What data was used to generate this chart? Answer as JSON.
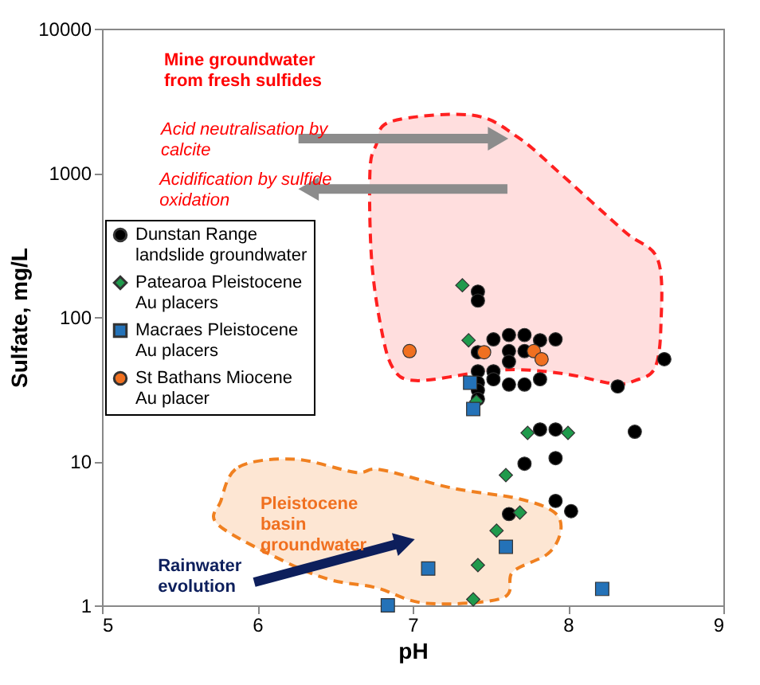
{
  "chart_data": {
    "type": "scatter",
    "xlabel": "pH",
    "ylabel": "Sulfate, mg/L",
    "xlim": [
      5,
      9
    ],
    "xticks": [
      5,
      6,
      7,
      8,
      9
    ],
    "ylim": [
      1,
      10000
    ],
    "yticks": [
      1,
      10,
      100,
      1000,
      10000
    ],
    "log": "y",
    "grid": false,
    "legend": "left",
    "series": [
      {
        "name": "Dunstan Range landslide groundwater",
        "color": "#000000",
        "marker": "circle",
        "x": [
          7.42,
          7.42,
          7.52,
          7.62,
          7.72,
          7.82,
          7.92,
          7.42,
          7.62,
          7.72,
          7.62,
          7.42,
          7.52,
          7.52,
          7.42,
          7.42,
          7.42,
          7.62,
          7.72,
          7.82,
          8.32,
          8.62,
          7.82,
          7.92,
          8.43,
          7.72,
          7.92,
          7.92,
          8.02,
          7.62
        ],
        "values": [
          150,
          130,
          70,
          75,
          75,
          69,
          70,
          57,
          58,
          58,
          49,
          42,
          42,
          37,
          35,
          31,
          27,
          34,
          34,
          37,
          33,
          51,
          16.6,
          16.6,
          16,
          9.6,
          10.5,
          5.3,
          4.5,
          4.3
        ]
      },
      {
        "name": "Patearoa Pleistocene Au placers",
        "color": "#1f9a4c",
        "marker": "diamond",
        "x": [
          7.32,
          7.36,
          7.41,
          7.74,
          8.0,
          7.6,
          7.69,
          7.54,
          7.42,
          7.39
        ],
        "values": [
          166,
          69,
          26,
          15.7,
          15.7,
          8.0,
          4.4,
          3.3,
          1.9,
          1.1
        ]
      },
      {
        "name": "Macraes Pleistocene Au placers",
        "color": "#2472b8",
        "marker": "square",
        "x": [
          7.37,
          7.39,
          7.6,
          7.1,
          6.84,
          8.22
        ],
        "values": [
          35,
          23,
          2.55,
          1.8,
          1.0,
          1.3
        ]
      },
      {
        "name": "St Bathans Miocene Au placer",
        "color": "#f07020",
        "marker": "circle",
        "x": [
          6.98,
          7.46,
          7.78,
          7.83
        ],
        "values": [
          58,
          57,
          58,
          51
        ]
      }
    ],
    "annotations": [
      "Mine groundwater from fresh sulfides",
      "Acid neutralisation by calcite",
      "Acidification by sulfide oxidation",
      "Pleistocene basin groundwater",
      "Rainwater evolution"
    ]
  }
}
